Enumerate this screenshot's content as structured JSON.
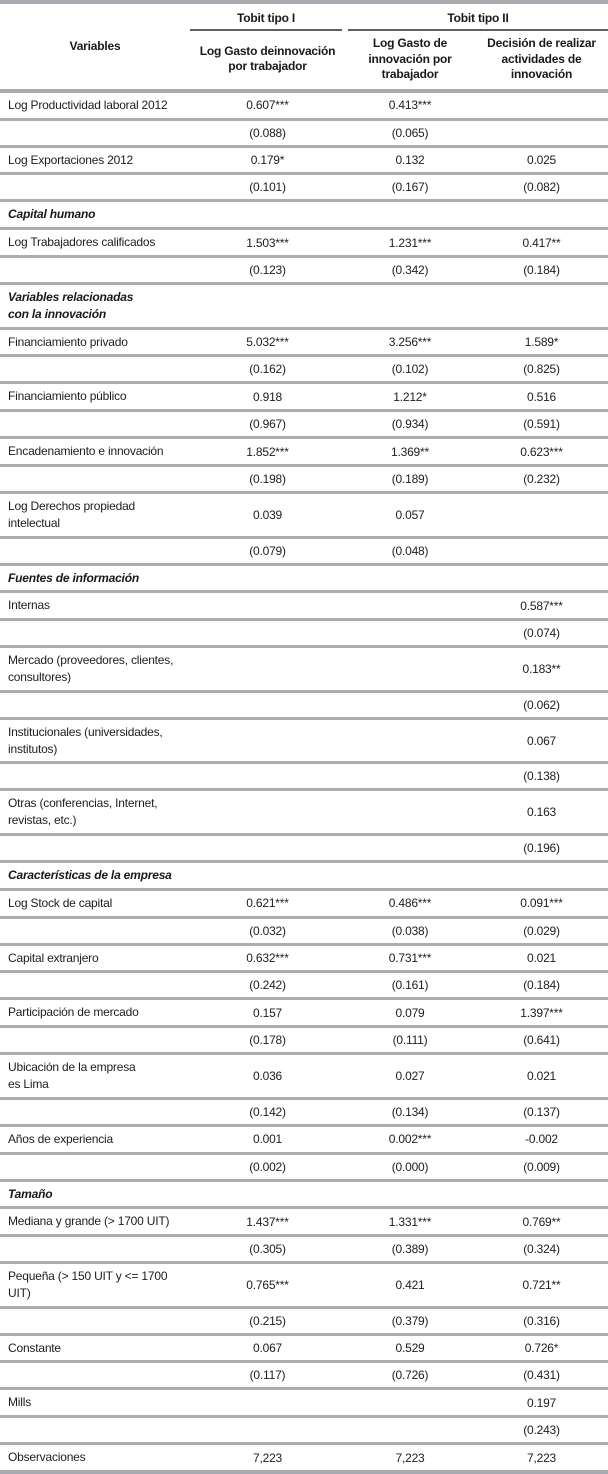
{
  "table": {
    "header": {
      "variables_label": "Variables",
      "group1": "Tobit tipo I",
      "group2": "Tobit tipo II",
      "col1": "Log Gasto deinnovación\npor trabajador",
      "col2": "Log Gasto de\ninnovación por\ntrabajador",
      "col3": "Decisión de realizar\nactividades de\ninnovación"
    },
    "rows": [
      {
        "kind": "coef",
        "label": "Log Productividad laboral 2012",
        "v1": "0.607***",
        "v2": "0.413***",
        "v3": ""
      },
      {
        "kind": "se",
        "label": "",
        "v1": "(0.088)",
        "v2": "(0.065)",
        "v3": ""
      },
      {
        "kind": "coef",
        "label": "Log Exportaciones 2012",
        "v1": "0.179*",
        "v2": "0.132",
        "v3": "0.025"
      },
      {
        "kind": "se",
        "label": "",
        "v1": "(0.101)",
        "v2": "(0.167)",
        "v3": "(0.082)"
      },
      {
        "kind": "section",
        "label": "Capital humano",
        "v1": "",
        "v2": "",
        "v3": ""
      },
      {
        "kind": "coef",
        "label": "Log Trabajadores calificados",
        "v1": "1.503***",
        "v2": "1.231***",
        "v3": "0.417**"
      },
      {
        "kind": "se",
        "label": "",
        "v1": "(0.123)",
        "v2": "(0.342)",
        "v3": "(0.184)"
      },
      {
        "kind": "section",
        "label": "Variables relacionadas\ncon la innovación",
        "v1": "",
        "v2": "",
        "v3": ""
      },
      {
        "kind": "coef",
        "label": "Financiamiento privado",
        "v1": "5.032***",
        "v2": "3.256***",
        "v3": "1.589*"
      },
      {
        "kind": "se",
        "label": "",
        "v1": "(0.162)",
        "v2": "(0.102)",
        "v3": "(0.825)"
      },
      {
        "kind": "coef",
        "label": "Financiamiento público",
        "v1": "0.918",
        "v2": "1.212*",
        "v3": "0.516"
      },
      {
        "kind": "se",
        "label": "",
        "v1": "(0.967)",
        "v2": "(0.934)",
        "v3": "(0.591)"
      },
      {
        "kind": "coef",
        "label": "Encadenamiento e innovación",
        "v1": "1.852***",
        "v2": "1.369**",
        "v3": "0.623***"
      },
      {
        "kind": "se",
        "label": "",
        "v1": "(0.198)",
        "v2": "(0.189)",
        "v3": "(0.232)"
      },
      {
        "kind": "coef",
        "label": "Log Derechos propiedad\nintelectual",
        "v1": "0.039",
        "v2": "0.057",
        "v3": ""
      },
      {
        "kind": "se",
        "label": "",
        "v1": "(0.079)",
        "v2": "(0.048)",
        "v3": ""
      },
      {
        "kind": "section",
        "label": "Fuentes de información",
        "v1": "",
        "v2": "",
        "v3": ""
      },
      {
        "kind": "coef",
        "label": "Internas",
        "v1": "",
        "v2": "",
        "v3": "0.587***"
      },
      {
        "kind": "se",
        "label": "",
        "v1": "",
        "v2": "",
        "v3": "(0.074)"
      },
      {
        "kind": "coef",
        "label": "Mercado (proveedores, clientes,\nconsultores)",
        "v1": "",
        "v2": "",
        "v3": "0.183**"
      },
      {
        "kind": "se",
        "label": "",
        "v1": "",
        "v2": "",
        "v3": "(0.062)"
      },
      {
        "kind": "coef",
        "label": "Institucionales (universidades,\ninstitutos)",
        "v1": "",
        "v2": "",
        "v3": "0.067"
      },
      {
        "kind": "se",
        "label": "",
        "v1": "",
        "v2": "",
        "v3": "(0.138)"
      },
      {
        "kind": "coef",
        "label": "Otras (conferencias, Internet,\nrevistas, etc.)",
        "v1": "",
        "v2": "",
        "v3": "0.163"
      },
      {
        "kind": "se",
        "label": "",
        "v1": "",
        "v2": "",
        "v3": "(0.196)"
      },
      {
        "kind": "section",
        "label": "Características de la empresa",
        "v1": "",
        "v2": "",
        "v3": ""
      },
      {
        "kind": "coef",
        "label": "Log Stock de capital",
        "v1": "0.621***",
        "v2": "0.486***",
        "v3": "0.091***"
      },
      {
        "kind": "se",
        "label": "",
        "v1": "(0.032)",
        "v2": "(0.038)",
        "v3": "(0.029)"
      },
      {
        "kind": "coef",
        "label": "Capital extranjero",
        "v1": "0.632***",
        "v2": "0.731***",
        "v3": "0.021"
      },
      {
        "kind": "se",
        "label": "",
        "v1": "(0.242)",
        "v2": "(0.161)",
        "v3": "(0.184)"
      },
      {
        "kind": "coef",
        "label": "Participación de mercado",
        "v1": "0.157",
        "v2": "0.079",
        "v3": "1.397***"
      },
      {
        "kind": "se",
        "label": "",
        "v1": "(0.178)",
        "v2": "(0.111)",
        "v3": "(0.641)"
      },
      {
        "kind": "coef",
        "label": "Ubicación de la empresa\nes Lima",
        "v1": "0.036",
        "v2": "0.027",
        "v3": "0.021"
      },
      {
        "kind": "se",
        "label": "",
        "v1": "(0.142)",
        "v2": "(0.134)",
        "v3": "(0.137)"
      },
      {
        "kind": "coef",
        "label": "Años de experiencia",
        "v1": "0.001",
        "v2": "0.002***",
        "v3": "-0.002"
      },
      {
        "kind": "se",
        "label": "",
        "v1": "(0.002)",
        "v2": "(0.000)",
        "v3": "(0.009)"
      },
      {
        "kind": "section",
        "label": "Tamaño",
        "v1": "",
        "v2": "",
        "v3": ""
      },
      {
        "kind": "coef",
        "label": "Mediana y grande (> 1700 UIT)",
        "v1": "1.437***",
        "v2": "1.331***",
        "v3": "0.769**"
      },
      {
        "kind": "se",
        "label": "",
        "v1": "(0.305)",
        "v2": "(0.389)",
        "v3": "(0.324)"
      },
      {
        "kind": "coef",
        "label": "Pequeña (> 150 UIT y <= 1700\nUIT)",
        "v1": "0.765***",
        "v2": "0.421",
        "v3": "0.721**"
      },
      {
        "kind": "se",
        "label": "",
        "v1": "(0.215)",
        "v2": "(0.379)",
        "v3": "(0.316)"
      },
      {
        "kind": "coef",
        "label": "Constante",
        "v1": "0.067",
        "v2": "0.529",
        "v3": "0.726*"
      },
      {
        "kind": "se",
        "label": "",
        "v1": "(0.117)",
        "v2": "(0.726)",
        "v3": "(0.431)"
      },
      {
        "kind": "coef",
        "label": "Mills",
        "v1": "",
        "v2": "",
        "v3": "0.197"
      },
      {
        "kind": "se",
        "label": "",
        "v1": "",
        "v2": "",
        "v3": "(0.243)"
      },
      {
        "kind": "coef",
        "label": "Observaciones",
        "v1": "7,223",
        "v2": "7,223",
        "v3": "7,223"
      }
    ]
  }
}
